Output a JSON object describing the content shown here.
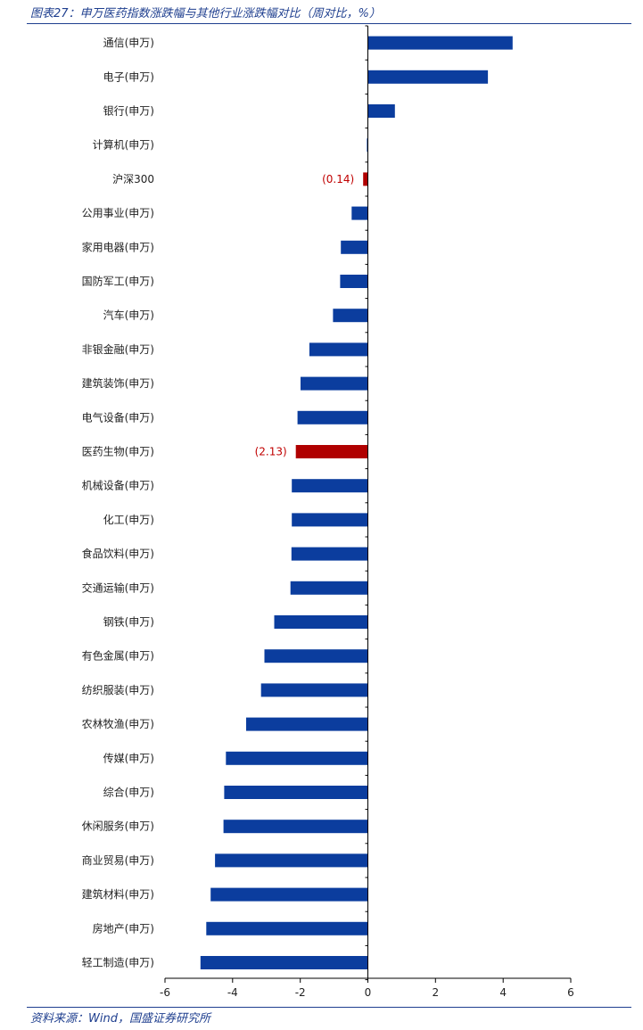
{
  "header": {
    "title": "图表27：申万医药指数涨跌幅与其他行业涨跌幅对比（周对比，%）"
  },
  "footer": {
    "source": "资料来源：Wind，国盛证券研究所"
  },
  "colors": {
    "bar": "#0b3d9e",
    "highlight": "#b00000",
    "label_highlight": "#c00000",
    "axis": "#000000",
    "rule": "#1f3f8f"
  },
  "chart_data": {
    "type": "bar",
    "orientation": "horizontal",
    "title": "",
    "xlabel": "",
    "ylabel": "",
    "xlim": [
      -6,
      6
    ],
    "xticks": [
      -6,
      -4,
      -2,
      0,
      2,
      4,
      6
    ],
    "grid": false,
    "legend": "none",
    "categories": [
      "通信(申万)",
      "电子(申万)",
      "银行(申万)",
      "计算机(申万)",
      "沪深300",
      "公用事业(申万)",
      "家用电器(申万)",
      "国防军工(申万)",
      "汽车(申万)",
      "非银金融(申万)",
      "建筑装饰(申万)",
      "电气设备(申万)",
      "医药生物(申万)",
      "机械设备(申万)",
      "化工(申万)",
      "食品饮料(申万)",
      "交通运输(申万)",
      "钢铁(申万)",
      "有色金属(申万)",
      "纺织服装(申万)",
      "农林牧渔(申万)",
      "传媒(申万)",
      "综合(申万)",
      "休闲服务(申万)",
      "商业贸易(申万)",
      "建筑材料(申万)",
      "房地产(申万)",
      "轻工制造(申万)"
    ],
    "values": [
      4.28,
      3.55,
      0.8,
      -0.03,
      -0.14,
      -0.48,
      -0.8,
      -0.82,
      -1.03,
      -1.73,
      -1.99,
      -2.08,
      -2.13,
      -2.25,
      -2.25,
      -2.26,
      -2.29,
      -2.77,
      -3.06,
      -3.16,
      -3.6,
      -4.2,
      -4.25,
      -4.27,
      -4.52,
      -4.65,
      -4.78,
      -4.95
    ],
    "highlighted": [
      "沪深300",
      "医药生物(申万)"
    ],
    "data_labels": [
      {
        "category": "沪深300",
        "text": "(0.14)"
      },
      {
        "category": "医药生物(申万)",
        "text": "(2.13)"
      }
    ]
  }
}
